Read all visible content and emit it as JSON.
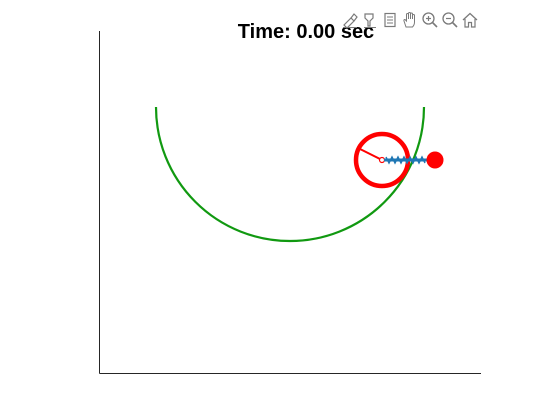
{
  "figure": {
    "title": "Time: 0.00 sec"
  },
  "toolbar": {
    "items": [
      {
        "name": "brush-data-icon"
      },
      {
        "name": "data-tips-icon"
      },
      {
        "name": "link-data-icon"
      },
      {
        "name": "pan-icon"
      },
      {
        "name": "zoom-in-icon"
      },
      {
        "name": "zoom-out-icon"
      },
      {
        "name": "restore-view-icon"
      }
    ]
  },
  "colors": {
    "axes": "#262626",
    "track": "#119911",
    "wheel": "#ff0000",
    "rod": "#1f77b4",
    "mass": "#ff0000",
    "icon": "#7a7a7a"
  }
}
